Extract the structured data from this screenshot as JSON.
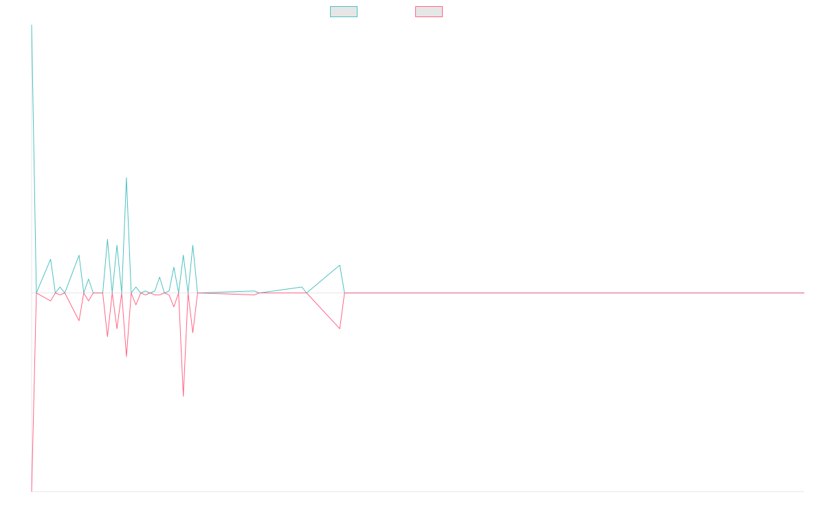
{
  "chart_data": {
    "type": "line",
    "title": "",
    "xlabel": "",
    "ylabel": "",
    "grid": false,
    "legend_position": "top-center",
    "x_count": 163,
    "ylim": [
      -1,
      1.35
    ],
    "series": [
      {
        "name": "",
        "color": "#4bc0c0",
        "points": [
          [
            0,
            1.35
          ],
          [
            1,
            0.0
          ],
          [
            4,
            0.17
          ],
          [
            5,
            0.0
          ],
          [
            6,
            0.03
          ],
          [
            7,
            0.0
          ],
          [
            10,
            0.19
          ],
          [
            11,
            0.0
          ],
          [
            12,
            0.07
          ],
          [
            13,
            0.0
          ],
          [
            15,
            0.0
          ],
          [
            16,
            0.27
          ],
          [
            17,
            0.0
          ],
          [
            18,
            0.24
          ],
          [
            19,
            0.0
          ],
          [
            20,
            0.58
          ],
          [
            21,
            0.0
          ],
          [
            22,
            0.03
          ],
          [
            23,
            0.0
          ],
          [
            24,
            0.01
          ],
          [
            25,
            0.0
          ],
          [
            26,
            0.01
          ],
          [
            27,
            0.08
          ],
          [
            28,
            0.0
          ],
          [
            29,
            0.01
          ],
          [
            30,
            0.13
          ],
          [
            31,
            0.0
          ],
          [
            32,
            0.19
          ],
          [
            33,
            0.0
          ],
          [
            34,
            0.24
          ],
          [
            35,
            0.0
          ],
          [
            47,
            0.01
          ],
          [
            48,
            0.0
          ],
          [
            57,
            0.03
          ],
          [
            58,
            0.0
          ],
          [
            65,
            0.14
          ],
          [
            66,
            0.0
          ],
          [
            163,
            0.0
          ]
        ]
      },
      {
        "name": "",
        "color": "#ff6384",
        "points": [
          [
            0,
            -1.0
          ],
          [
            1,
            0.0
          ],
          [
            4,
            -0.04
          ],
          [
            5,
            0.0
          ],
          [
            6,
            -0.01
          ],
          [
            7,
            0.0
          ],
          [
            10,
            -0.14
          ],
          [
            11,
            0.0
          ],
          [
            12,
            -0.04
          ],
          [
            13,
            0.0
          ],
          [
            15,
            0.0
          ],
          [
            16,
            -0.22
          ],
          [
            17,
            0.0
          ],
          [
            18,
            -0.18
          ],
          [
            19,
            0.0
          ],
          [
            20,
            -0.32
          ],
          [
            21,
            0.0
          ],
          [
            22,
            -0.06
          ],
          [
            23,
            0.0
          ],
          [
            24,
            -0.01
          ],
          [
            25,
            0.0
          ],
          [
            26,
            -0.01
          ],
          [
            27,
            -0.01
          ],
          [
            28,
            0.0
          ],
          [
            29,
            -0.01
          ],
          [
            30,
            -0.07
          ],
          [
            31,
            0.0
          ],
          [
            32,
            -0.52
          ],
          [
            33,
            0.0
          ],
          [
            34,
            -0.2
          ],
          [
            35,
            0.0
          ],
          [
            47,
            -0.01
          ],
          [
            48,
            0.0
          ],
          [
            57,
            0.0
          ],
          [
            58,
            0.0
          ],
          [
            65,
            -0.18
          ],
          [
            66,
            0.0
          ],
          [
            163,
            0.0
          ]
        ]
      }
    ]
  }
}
